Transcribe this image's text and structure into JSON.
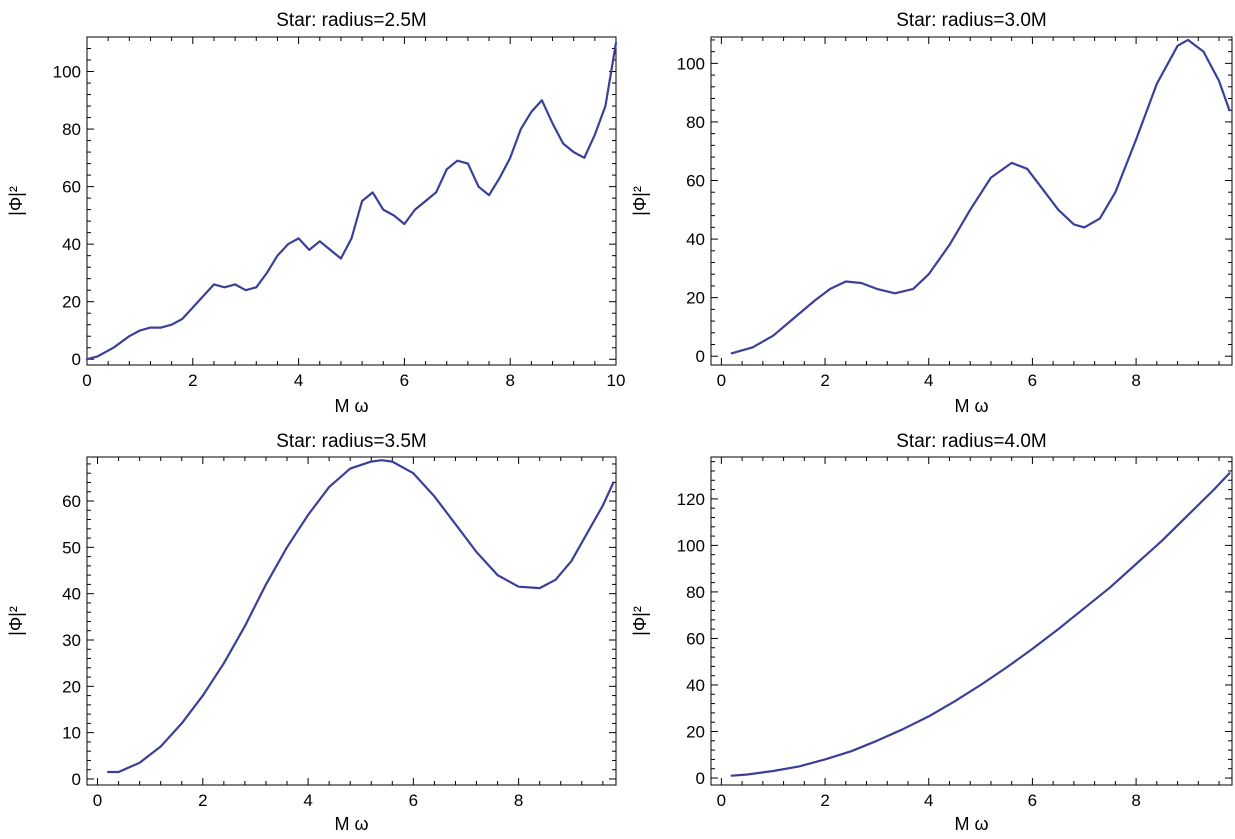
{
  "chart_data": [
    {
      "type": "line",
      "title": "Star: radius=2.5M",
      "xlabel": "M ω",
      "ylabel": "|Φ|²",
      "xlim": [
        0,
        10
      ],
      "ylim": [
        -2,
        112
      ],
      "xticks": [
        0,
        2,
        4,
        6,
        8,
        10
      ],
      "yticks": [
        0,
        20,
        40,
        60,
        80,
        100
      ],
      "grid": false,
      "series": [
        {
          "color": "#3b3f99",
          "x": [
            0.0,
            0.2,
            0.5,
            0.8,
            1.0,
            1.2,
            1.4,
            1.6,
            1.8,
            2.0,
            2.2,
            2.4,
            2.6,
            2.8,
            3.0,
            3.2,
            3.4,
            3.6,
            3.8,
            4.0,
            4.2,
            4.4,
            4.6,
            4.8,
            5.0,
            5.2,
            5.4,
            5.6,
            5.8,
            6.0,
            6.2,
            6.4,
            6.6,
            6.8,
            7.0,
            7.2,
            7.4,
            7.6,
            7.8,
            8.0,
            8.2,
            8.4,
            8.6,
            8.8,
            9.0,
            9.2,
            9.4,
            9.6,
            9.8,
            10.0
          ],
          "y": [
            0,
            1,
            4,
            8,
            10,
            11,
            11,
            12,
            14,
            18,
            22,
            26,
            25,
            26,
            24,
            25,
            30,
            36,
            40,
            42,
            38,
            41,
            38,
            35,
            42,
            55,
            58,
            52,
            50,
            47,
            52,
            55,
            58,
            66,
            69,
            68,
            60,
            57,
            63,
            70,
            80,
            86,
            90,
            82,
            75,
            72,
            70,
            78,
            88,
            110
          ]
        }
      ]
    },
    {
      "type": "line",
      "title": "Star: radius=3.0M",
      "xlabel": "M ω",
      "ylabel": "|Φ|²",
      "xlim": [
        -0.2,
        9.85
      ],
      "ylim": [
        -3,
        109
      ],
      "xticks": [
        0,
        2,
        4,
        6,
        8
      ],
      "yticks": [
        0,
        20,
        40,
        60,
        80,
        100
      ],
      "grid": false,
      "series": [
        {
          "color": "#3b3f99",
          "x": [
            0.2,
            0.6,
            1.0,
            1.4,
            1.8,
            2.1,
            2.4,
            2.7,
            3.0,
            3.35,
            3.7,
            4.0,
            4.4,
            4.8,
            5.2,
            5.6,
            5.9,
            6.2,
            6.5,
            6.8,
            7.0,
            7.3,
            7.6,
            8.0,
            8.4,
            8.8,
            9.0,
            9.3,
            9.6,
            9.8
          ],
          "y": [
            1,
            3,
            7,
            13,
            19,
            23,
            25.5,
            25,
            23,
            21.5,
            23,
            28,
            38,
            50,
            61,
            66,
            64,
            57,
            50,
            45,
            44,
            47,
            56,
            74,
            93,
            106,
            108,
            104,
            94,
            84
          ]
        }
      ]
    },
    {
      "type": "line",
      "title": "Star: radius=3.5M",
      "xlabel": "M ω",
      "ylabel": "|Φ|²",
      "xlim": [
        -0.2,
        9.85
      ],
      "ylim": [
        -1.3,
        69.5
      ],
      "xticks": [
        0,
        2,
        4,
        6,
        8
      ],
      "yticks": [
        0,
        10,
        20,
        30,
        40,
        50,
        60
      ],
      "grid": false,
      "series": [
        {
          "color": "#3b3f99",
          "x": [
            0.2,
            0.4,
            0.8,
            1.2,
            1.6,
            2.0,
            2.4,
            2.8,
            3.2,
            3.6,
            4.0,
            4.4,
            4.8,
            5.2,
            5.4,
            5.6,
            6.0,
            6.4,
            6.8,
            7.2,
            7.6,
            8.0,
            8.4,
            8.7,
            9.0,
            9.3,
            9.6,
            9.8
          ],
          "y": [
            1.5,
            1.5,
            3.5,
            7,
            12,
            18,
            25,
            33,
            42,
            50,
            57,
            63,
            67,
            68.5,
            68.8,
            68.5,
            66,
            61,
            55,
            49,
            44,
            41.5,
            41.2,
            43,
            47,
            53,
            59,
            64
          ]
        }
      ]
    },
    {
      "type": "line",
      "title": "Star: radius=4.0M",
      "xlabel": "M ω",
      "ylabel": "|Φ|²",
      "xlim": [
        -0.2,
        9.85
      ],
      "ylim": [
        -3,
        138
      ],
      "xticks": [
        0,
        2,
        4,
        6,
        8
      ],
      "yticks": [
        0,
        20,
        40,
        60,
        80,
        100,
        120
      ],
      "grid": false,
      "series": [
        {
          "color": "#3b3f99",
          "x": [
            0.2,
            0.5,
            1.0,
            1.5,
            2.0,
            2.5,
            3.0,
            3.5,
            4.0,
            4.5,
            5.0,
            5.5,
            6.0,
            6.5,
            7.0,
            7.5,
            8.0,
            8.5,
            9.0,
            9.5,
            9.8
          ],
          "y": [
            1,
            1.5,
            3,
            5,
            8,
            11.5,
            16,
            21,
            26.5,
            33,
            40,
            47.5,
            55.5,
            64,
            73,
            82,
            92,
            102,
            113,
            124,
            131
          ]
        }
      ]
    }
  ]
}
